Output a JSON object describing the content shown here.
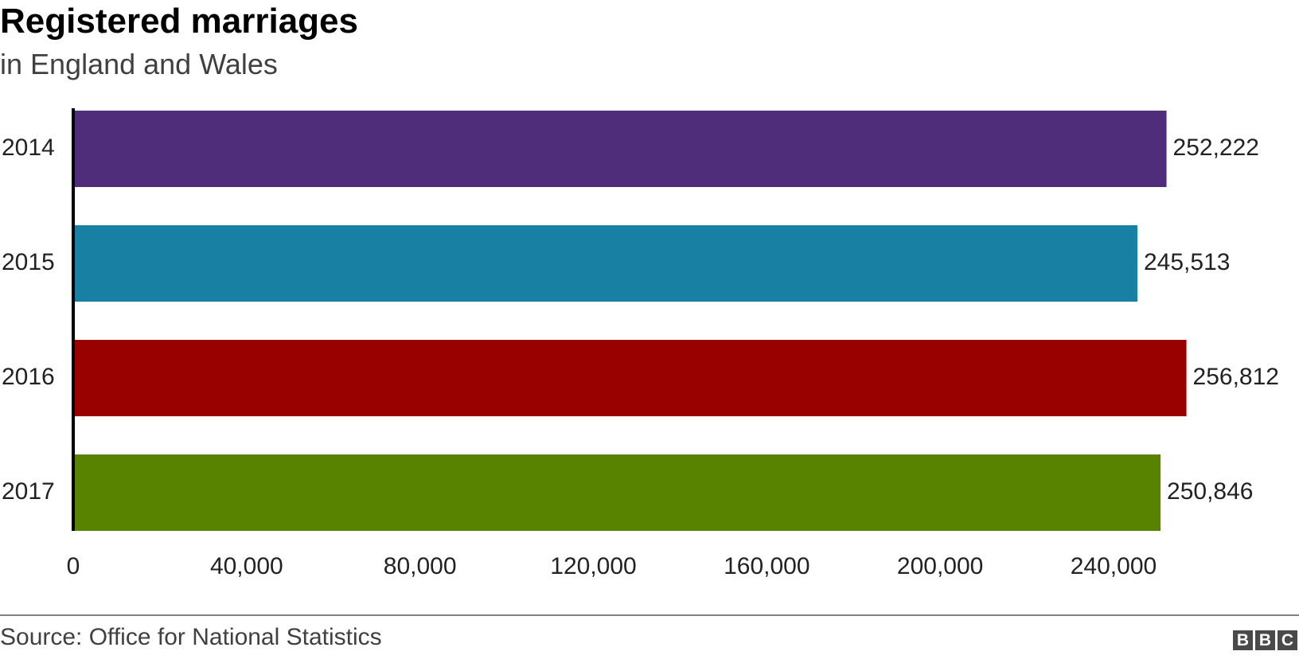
{
  "title": "Registered marriages",
  "subtitle": "in England and Wales",
  "source": "Source: Office for National Statistics",
  "logo": [
    "B",
    "B",
    "C"
  ],
  "chart_data": {
    "type": "bar",
    "orientation": "horizontal",
    "categories": [
      "2014",
      "2015",
      "2016",
      "2017"
    ],
    "values": [
      252222,
      245513,
      256812,
      250846
    ],
    "value_labels": [
      "252,222",
      "245,513",
      "256,812",
      "250,846"
    ],
    "colors": [
      "#4f2d7a",
      "#1780a3",
      "#990000",
      "#588300"
    ],
    "xlim": [
      0,
      280000
    ],
    "x_ticks": [
      0,
      40000,
      80000,
      120000,
      160000,
      200000,
      240000
    ],
    "x_tick_labels": [
      "0",
      "40,000",
      "80,000",
      "120,000",
      "160,000",
      "200,000",
      "240,000"
    ],
    "grid": false,
    "legend": "none"
  }
}
